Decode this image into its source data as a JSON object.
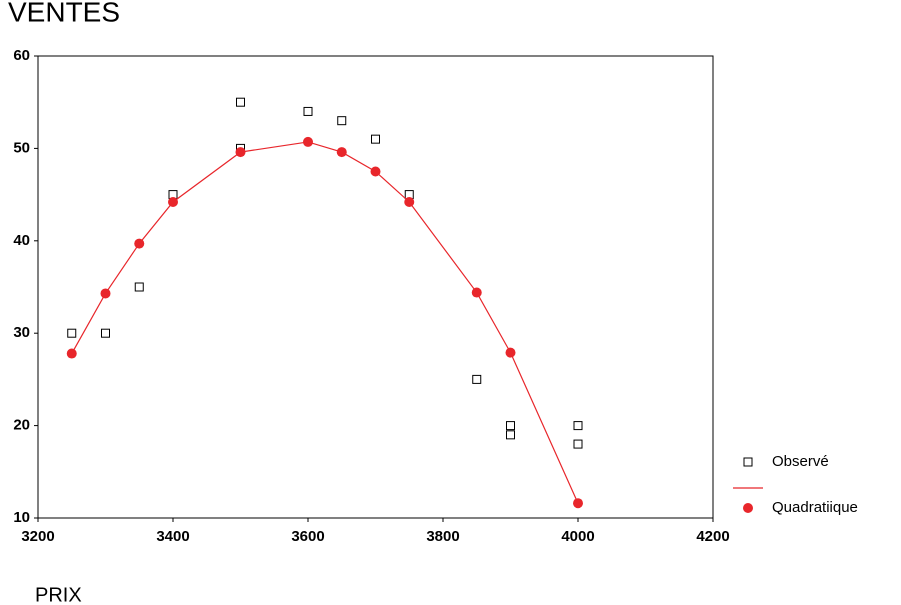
{
  "chart_data": {
    "type": "scatter",
    "title": "VENTES",
    "x_label": "PRIX",
    "xlim": [
      3200,
      4200
    ],
    "xticks": [
      3200,
      3400,
      3600,
      3800,
      4000,
      4200
    ],
    "ylim": [
      10,
      60
    ],
    "yticks": [
      10,
      20,
      30,
      40,
      50,
      60
    ],
    "legend": "right",
    "series": [
      {
        "name": "Observé",
        "color": "#000000",
        "marker": "square",
        "line": false,
        "x": [
          3250,
          3300,
          3350,
          3400,
          3500,
          3500,
          3600,
          3650,
          3700,
          3750,
          3850,
          3900,
          3900,
          4000,
          4000
        ],
        "values": [
          30,
          30,
          35,
          45,
          55,
          50,
          54,
          53,
          51,
          45,
          25,
          20,
          19,
          20,
          18
        ]
      },
      {
        "name": "Quadratiique",
        "color": "#e8262b",
        "marker": "circle",
        "line": true,
        "x": [
          3250,
          3300,
          3350,
          3400,
          3500,
          3600,
          3650,
          3700,
          3750,
          3850,
          3900,
          4000
        ],
        "values": [
          27.8,
          34.3,
          39.7,
          44.2,
          49.6,
          50.7,
          49.6,
          47.5,
          44.2,
          34.4,
          27.9,
          11.6
        ]
      }
    ]
  }
}
